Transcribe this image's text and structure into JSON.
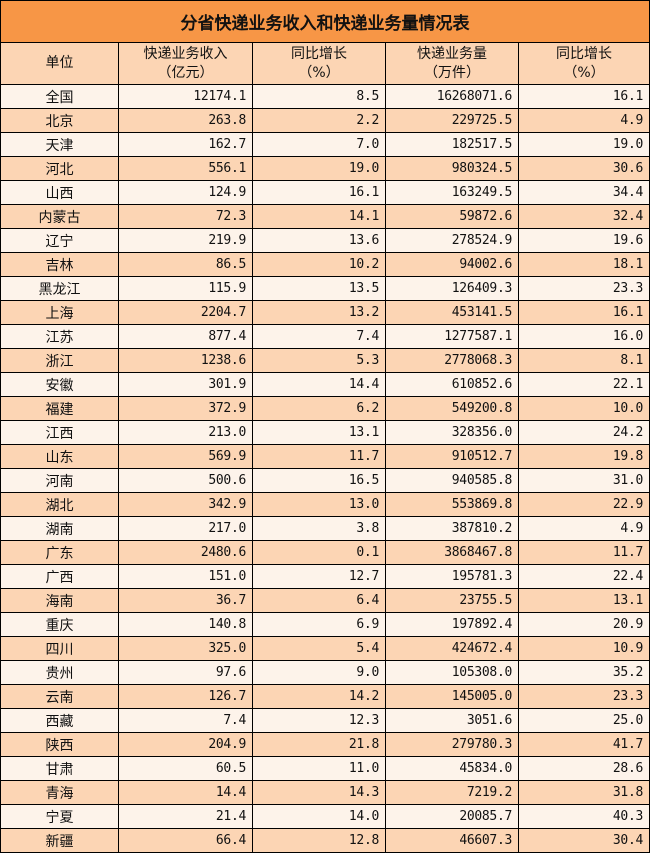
{
  "title": "分省快递业务收入和快递业务量情况表",
  "headers": [
    {
      "line1": "单位",
      "line2": ""
    },
    {
      "line1": "快递业务收入",
      "line2": "（亿元）"
    },
    {
      "line1": "同比增长",
      "line2": "（%）"
    },
    {
      "line1": "快递业务量",
      "line2": "（万件）"
    },
    {
      "line1": "同比增长",
      "line2": "（%）"
    }
  ],
  "colors": {
    "title_bg": "#F79646",
    "header_bg": "#FCD5B4",
    "row_shaded": "#FCD5B4",
    "row_light": "#FDF3EA"
  },
  "rows": [
    [
      "全国",
      "12174.1",
      "8.5",
      "16268071.6",
      "16.1"
    ],
    [
      "北京",
      "263.8",
      "2.2",
      "229725.5",
      "4.9"
    ],
    [
      "天津",
      "162.7",
      "7.0",
      "182517.5",
      "19.0"
    ],
    [
      "河北",
      "556.1",
      "19.0",
      "980324.5",
      "30.6"
    ],
    [
      "山西",
      "124.9",
      "16.1",
      "163249.5",
      "34.4"
    ],
    [
      "内蒙古",
      "72.3",
      "14.1",
      "59872.6",
      "32.4"
    ],
    [
      "辽宁",
      "219.9",
      "13.6",
      "278524.9",
      "19.6"
    ],
    [
      "吉林",
      "86.5",
      "10.2",
      "94002.6",
      "18.1"
    ],
    [
      "黑龙江",
      "115.9",
      "13.5",
      "126409.3",
      "23.3"
    ],
    [
      "上海",
      "2204.7",
      "13.2",
      "453141.5",
      "16.1"
    ],
    [
      "江苏",
      "877.4",
      "7.4",
      "1277587.1",
      "16.0"
    ],
    [
      "浙江",
      "1238.6",
      "5.3",
      "2778068.3",
      "8.1"
    ],
    [
      "安徽",
      "301.9",
      "14.4",
      "610852.6",
      "22.1"
    ],
    [
      "福建",
      "372.9",
      "6.2",
      "549200.8",
      "10.0"
    ],
    [
      "江西",
      "213.0",
      "13.1",
      "328356.0",
      "24.2"
    ],
    [
      "山东",
      "569.9",
      "11.7",
      "910512.7",
      "19.8"
    ],
    [
      "河南",
      "500.6",
      "16.5",
      "940585.8",
      "31.0"
    ],
    [
      "湖北",
      "342.9",
      "13.0",
      "553869.8",
      "22.9"
    ],
    [
      "湖南",
      "217.0",
      "3.8",
      "387810.2",
      "4.9"
    ],
    [
      "广东",
      "2480.6",
      "0.1",
      "3868467.8",
      "11.7"
    ],
    [
      "广西",
      "151.0",
      "12.7",
      "195781.3",
      "22.4"
    ],
    [
      "海南",
      "36.7",
      "6.4",
      "23755.5",
      "13.1"
    ],
    [
      "重庆",
      "140.8",
      "6.9",
      "197892.4",
      "20.9"
    ],
    [
      "四川",
      "325.0",
      "5.4",
      "424672.4",
      "10.9"
    ],
    [
      "贵州",
      "97.6",
      "9.0",
      "105308.0",
      "35.2"
    ],
    [
      "云南",
      "126.7",
      "14.2",
      "145005.0",
      "23.3"
    ],
    [
      "西藏",
      "7.4",
      "12.3",
      "3051.6",
      "25.0"
    ],
    [
      "陕西",
      "204.9",
      "21.8",
      "279780.3",
      "41.7"
    ],
    [
      "甘肃",
      "60.5",
      "11.0",
      "45834.0",
      "28.6"
    ],
    [
      "青海",
      "14.4",
      "14.3",
      "7219.2",
      "31.8"
    ],
    [
      "宁夏",
      "21.4",
      "14.0",
      "20085.7",
      "40.3"
    ],
    [
      "新疆",
      "66.4",
      "12.8",
      "46607.3",
      "30.4"
    ]
  ]
}
